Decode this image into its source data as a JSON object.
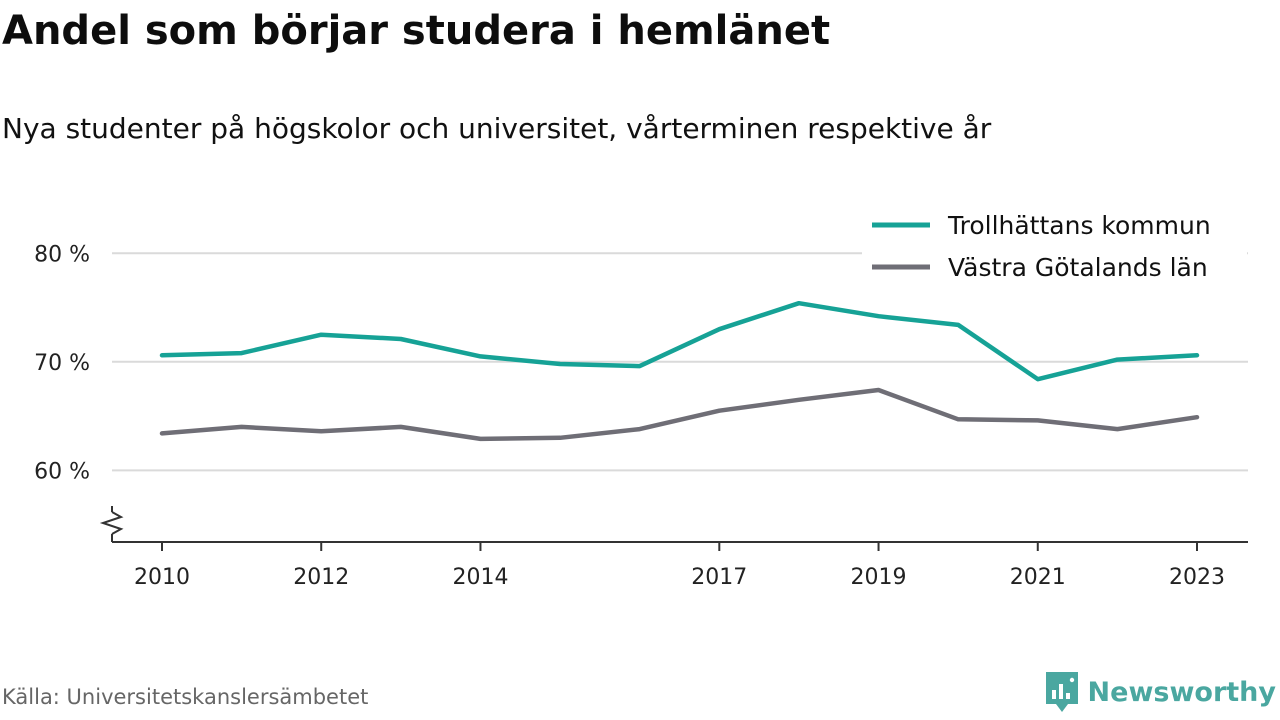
{
  "title": "Andel som börjar studera i hemlänet",
  "subtitle": "Nya studenter på högskolor och universitet, vårterminen respektive år",
  "source": "Källa: Universitetskanslersämbetet",
  "brand": {
    "name": "Newsworthy",
    "icon": "newsworthy-logo-icon",
    "color": "#4aa7a0"
  },
  "chart_data": {
    "type": "line",
    "x": [
      2010,
      2011,
      2012,
      2013,
      2014,
      2015,
      2016,
      2017,
      2018,
      2019,
      2020,
      2021,
      2022,
      2023
    ],
    "x_tick_labels": [
      "2010",
      "2012",
      "2014",
      "2017",
      "2019",
      "2021",
      "2023"
    ],
    "y_tick_labels": [
      "60 %",
      "70 %",
      "80 %"
    ],
    "y_ticks": [
      60,
      70,
      80
    ],
    "ylim": [
      53.4,
      80.3
    ],
    "axis_break": true,
    "grid": true,
    "legend_position": "top-right",
    "series": [
      {
        "name": "Trollhättans kommun",
        "color": "#16a296",
        "values": [
          70.6,
          70.8,
          72.5,
          72.1,
          70.5,
          69.8,
          69.6,
          73.0,
          75.4,
          74.2,
          73.4,
          68.4,
          70.2,
          70.6
        ]
      },
      {
        "name": "Västra Götalands län",
        "color": "#6f6e76",
        "values": [
          63.4,
          64.0,
          63.6,
          64.0,
          62.9,
          63.0,
          63.8,
          65.5,
          66.5,
          67.4,
          64.7,
          64.6,
          63.8,
          64.9
        ]
      }
    ]
  }
}
